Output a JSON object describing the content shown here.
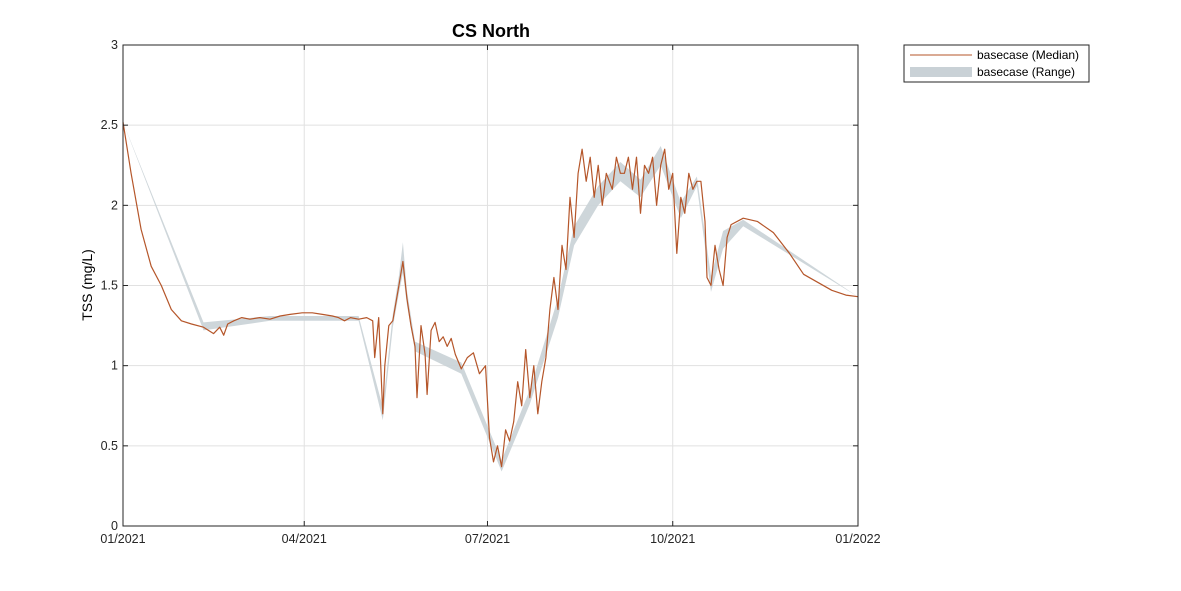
{
  "chart_data": {
    "type": "area",
    "title": "CS North",
    "xlabel": "",
    "ylabel": "TSS (mg/L)",
    "xlim": [
      "2021-01-01",
      "2022-01-01"
    ],
    "ylim": [
      0,
      3
    ],
    "x_ticks": [
      {
        "date": "2021-01-01",
        "label": "01/2021"
      },
      {
        "date": "2021-04-01",
        "label": "04/2021"
      },
      {
        "date": "2021-07-01",
        "label": "07/2021"
      },
      {
        "date": "2021-10-01",
        "label": "10/2021"
      },
      {
        "date": "2022-01-01",
        "label": "01/2022"
      }
    ],
    "y_ticks": [
      0,
      0.5,
      1,
      1.5,
      2,
      2.5,
      3
    ],
    "y_tick_labels": [
      "0",
      "0.5",
      "1",
      "1.5",
      "2",
      "2.5",
      "3"
    ],
    "grid": true,
    "legend_position": "outside-top-right",
    "colors": {
      "median": "#b5562a",
      "range": "#c9d1d6"
    },
    "series": [
      {
        "name": "basecase (Median)",
        "kind": "line",
        "x": [
          "2021-01-01",
          "2021-01-05",
          "2021-01-10",
          "2021-01-15",
          "2021-01-20",
          "2021-01-25",
          "2021-01-30",
          "2021-02-04",
          "2021-02-10",
          "2021-02-15",
          "2021-02-18",
          "2021-02-20",
          "2021-02-22",
          "2021-02-25",
          "2021-03-01",
          "2021-03-05",
          "2021-03-10",
          "2021-03-15",
          "2021-03-20",
          "2021-03-25",
          "2021-03-31",
          "2021-04-05",
          "2021-04-10",
          "2021-04-15",
          "2021-04-18",
          "2021-04-21",
          "2021-04-24",
          "2021-04-28",
          "2021-05-02",
          "2021-05-05",
          "2021-05-06",
          "2021-05-08",
          "2021-05-10",
          "2021-05-11",
          "2021-05-13",
          "2021-05-15",
          "2021-05-18",
          "2021-05-20",
          "2021-05-22",
          "2021-05-24",
          "2021-05-26",
          "2021-05-27",
          "2021-05-29",
          "2021-05-31",
          "2021-06-01",
          "2021-06-03",
          "2021-06-05",
          "2021-06-07",
          "2021-06-09",
          "2021-06-11",
          "2021-06-13",
          "2021-06-15",
          "2021-06-18",
          "2021-06-21",
          "2021-06-24",
          "2021-06-27",
          "2021-06-30",
          "2021-07-02",
          "2021-07-04",
          "2021-07-06",
          "2021-07-08",
          "2021-07-10",
          "2021-07-12",
          "2021-07-14",
          "2021-07-16",
          "2021-07-18",
          "2021-07-20",
          "2021-07-22",
          "2021-07-24",
          "2021-07-26",
          "2021-07-28",
          "2021-07-30",
          "2021-08-01",
          "2021-08-03",
          "2021-08-05",
          "2021-08-07",
          "2021-08-09",
          "2021-08-11",
          "2021-08-13",
          "2021-08-15",
          "2021-08-17",
          "2021-08-19",
          "2021-08-21",
          "2021-08-23",
          "2021-08-25",
          "2021-08-27",
          "2021-08-29",
          "2021-09-01",
          "2021-09-03",
          "2021-09-05",
          "2021-09-07",
          "2021-09-09",
          "2021-09-11",
          "2021-09-13",
          "2021-09-15",
          "2021-09-17",
          "2021-09-19",
          "2021-09-21",
          "2021-09-23",
          "2021-09-25",
          "2021-09-27",
          "2021-09-29",
          "2021-10-01",
          "2021-10-03",
          "2021-10-05",
          "2021-10-07",
          "2021-10-09",
          "2021-10-11",
          "2021-10-13",
          "2021-10-15",
          "2021-10-17",
          "2021-10-18",
          "2021-10-20",
          "2021-10-22",
          "2021-10-24",
          "2021-10-26",
          "2021-10-28",
          "2021-10-30",
          "2021-11-05",
          "2021-11-12",
          "2021-11-20",
          "2021-11-28",
          "2021-12-05",
          "2021-12-12",
          "2021-12-19",
          "2021-12-26",
          "2022-01-01"
        ],
        "y": [
          2.52,
          2.2,
          1.85,
          1.62,
          1.5,
          1.35,
          1.28,
          1.26,
          1.24,
          1.2,
          1.24,
          1.19,
          1.26,
          1.28,
          1.3,
          1.29,
          1.3,
          1.29,
          1.31,
          1.32,
          1.33,
          1.33,
          1.32,
          1.31,
          1.3,
          1.28,
          1.3,
          1.29,
          1.3,
          1.28,
          1.05,
          1.3,
          0.7,
          1.0,
          1.25,
          1.28,
          1.5,
          1.65,
          1.42,
          1.25,
          1.12,
          0.8,
          1.25,
          1.07,
          0.82,
          1.22,
          1.27,
          1.15,
          1.18,
          1.12,
          1.17,
          1.07,
          0.98,
          1.05,
          1.08,
          0.95,
          1.0,
          0.55,
          0.4,
          0.5,
          0.37,
          0.6,
          0.53,
          0.65,
          0.9,
          0.75,
          1.1,
          0.8,
          1.0,
          0.7,
          0.9,
          1.05,
          1.35,
          1.55,
          1.35,
          1.75,
          1.6,
          2.05,
          1.8,
          2.2,
          2.35,
          2.15,
          2.3,
          2.05,
          2.25,
          2.0,
          2.2,
          2.1,
          2.3,
          2.2,
          2.2,
          2.3,
          2.1,
          2.3,
          1.95,
          2.25,
          2.2,
          2.3,
          2.0,
          2.25,
          2.35,
          2.1,
          2.2,
          1.7,
          2.05,
          1.95,
          2.2,
          2.1,
          2.15,
          2.15,
          1.9,
          1.55,
          1.5,
          1.75,
          1.6,
          1.5,
          1.8,
          1.88,
          1.92,
          1.9,
          1.83,
          1.7,
          1.57,
          1.52,
          1.47,
          1.44,
          1.43
        ]
      },
      {
        "name": "basecase (Range)",
        "kind": "band",
        "x": [
          "2021-01-01",
          "2021-02-10",
          "2021-03-15",
          "2021-04-28",
          "2021-05-10",
          "2021-05-15",
          "2021-05-18",
          "2021-05-20",
          "2021-05-22",
          "2021-05-26",
          "2021-06-18",
          "2021-07-08",
          "2021-07-22",
          "2021-08-05",
          "2021-08-13",
          "2021-08-25",
          "2021-09-05",
          "2021-09-15",
          "2021-09-25",
          "2021-10-05",
          "2021-10-13",
          "2021-10-20",
          "2021-10-26",
          "2021-11-05",
          "2022-01-01"
        ],
        "lower": [
          2.52,
          1.22,
          1.28,
          1.28,
          0.66,
          1.24,
          1.45,
          1.58,
          1.38,
          1.09,
          0.95,
          0.34,
          0.76,
          1.3,
          1.75,
          2.0,
          2.15,
          2.05,
          2.25,
          1.92,
          2.12,
          1.46,
          1.73,
          1.87,
          1.43
        ],
        "upper": [
          2.52,
          1.27,
          1.31,
          1.31,
          0.74,
          1.32,
          1.56,
          1.77,
          1.47,
          1.15,
          1.02,
          0.41,
          0.85,
          1.42,
          1.87,
          2.12,
          2.27,
          2.16,
          2.37,
          2.02,
          2.18,
          1.56,
          1.84,
          1.91,
          1.43
        ]
      }
    ]
  }
}
